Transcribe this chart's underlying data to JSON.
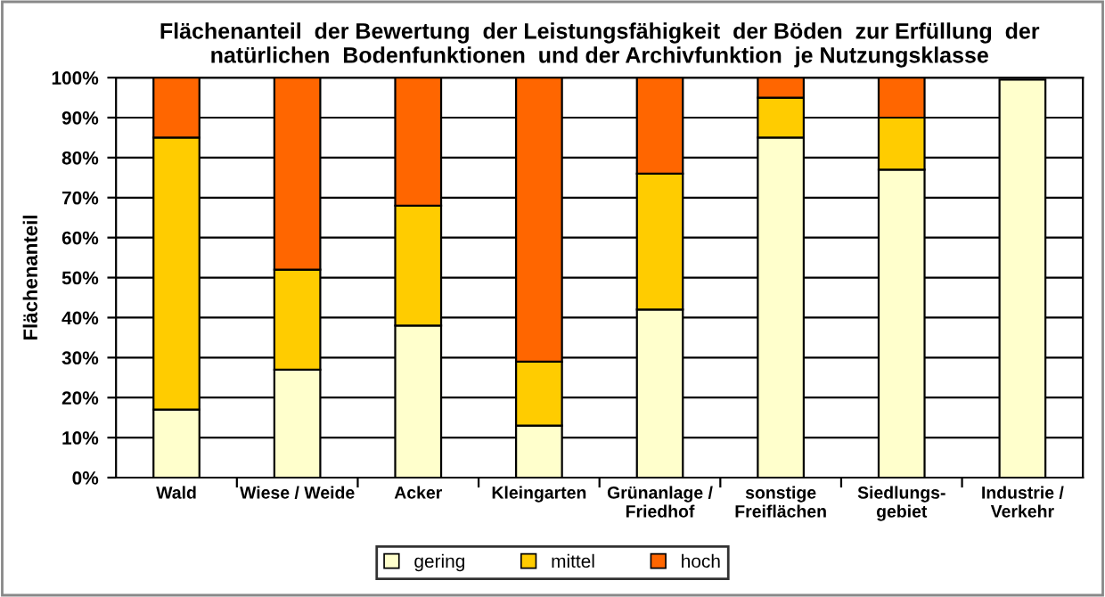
{
  "chart_data": {
    "type": "bar",
    "stacked": true,
    "title": "Flächenanteil  der Bewertung  der Leistungsfähigkeit  der Böden  zur Erfüllung  der\nnatürlichen  Bodenfunktionen  und der Archivfunktion  je Nutzungsklasse",
    "ylabel": "Flächenanteil",
    "categories": [
      "Wald",
      "Wiese / Weide",
      "Acker",
      "Kleingarten",
      "Grünanlage /\nFriedhof",
      "sonstige\nFreiflächen",
      "Siedlungs-\ngebiet",
      "Industrie /\nVerkehr"
    ],
    "series": [
      {
        "name": "gering",
        "color": "#ffffcc",
        "values": [
          17,
          27,
          38,
          13,
          42,
          85,
          77,
          99.5
        ]
      },
      {
        "name": "mittel",
        "color": "#ffcc00",
        "values": [
          68,
          25,
          30,
          16,
          34,
          10,
          13,
          null
        ]
      },
      {
        "name": "hoch",
        "color": "#ff6600",
        "values": [
          15,
          48,
          32,
          71,
          24,
          5,
          10,
          null
        ]
      }
    ],
    "ylim": [
      0,
      100
    ],
    "yticks": [
      {
        "value": 0,
        "label": "0%"
      },
      {
        "value": 10,
        "label": "10%"
      },
      {
        "value": 20,
        "label": "20%"
      },
      {
        "value": 30,
        "label": "30%"
      },
      {
        "value": 40,
        "label": "40%"
      },
      {
        "value": 50,
        "label": "50%"
      },
      {
        "value": 60,
        "label": "60%"
      },
      {
        "value": 70,
        "label": "70%"
      },
      {
        "value": 80,
        "label": "80%"
      },
      {
        "value": 90,
        "label": "90%"
      },
      {
        "value": 100,
        "label": "100%"
      }
    ],
    "grid": "y",
    "legend": "bottom"
  }
}
